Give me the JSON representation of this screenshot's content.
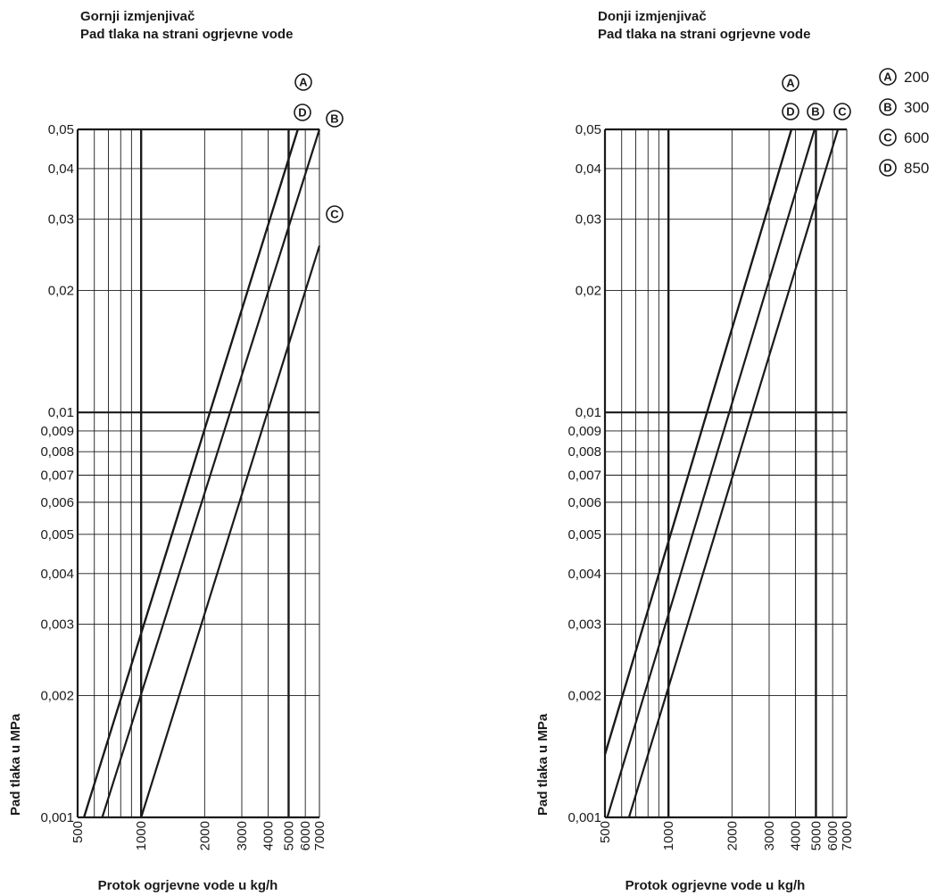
{
  "chart_data": [
    {
      "type": "line",
      "title": "Gornji izmjenjivač",
      "subtitle": "Pad tlaka na strani ogrjevne vode",
      "xlabel": "Protok ogrjevne vode u kg/h",
      "ylabel": "Pad tlaka u MPa",
      "x_scale": "log",
      "y_scale": "log",
      "xlim": [
        500,
        7000
      ],
      "ylim": [
        0.001,
        0.05
      ],
      "x_ticks": [
        "500",
        "1000",
        "2000",
        "3000",
        "4000",
        "5000",
        "6000",
        "7000"
      ],
      "y_ticks": [
        "0,001",
        "0,002",
        "0,003",
        "0,004",
        "0,005",
        "0,006",
        "0,007",
        "0,008",
        "0,009",
        "0,01",
        "0,02",
        "0,03",
        "0,04",
        "0,05"
      ],
      "series": [
        {
          "name": "A",
          "x": [
            536,
            5528
          ],
          "y": [
            0.001,
            0.05
          ]
        },
        {
          "name": "D",
          "x": [
            536,
            5528
          ],
          "y": [
            0.001,
            0.05
          ]
        },
        {
          "name": "B",
          "x": [
            654,
            7000
          ],
          "y": [
            0.001,
            0.05
          ]
        },
        {
          "name": "C",
          "x": [
            1000,
            7000
          ],
          "y": [
            0.001,
            0.0258
          ]
        }
      ]
    },
    {
      "type": "line",
      "title": "Donji izmjenjivač",
      "subtitle": "Pad tlaka na strani ogrjevne vode",
      "xlabel": "Protok ogrjevne vode u kg/h",
      "ylabel": "Pad tlaka u MPa",
      "x_scale": "log",
      "y_scale": "log",
      "xlim": [
        500,
        7000
      ],
      "ylim": [
        0.001,
        0.05
      ],
      "x_ticks": [
        "500",
        "1000",
        "2000",
        "3000",
        "4000",
        "5000",
        "6000",
        "7000"
      ],
      "y_ticks": [
        "0,001",
        "0,002",
        "0,003",
        "0,004",
        "0,005",
        "0,006",
        "0,007",
        "0,008",
        "0,009",
        "0,01",
        "0,02",
        "0,03",
        "0,04",
        "0,05"
      ],
      "series": [
        {
          "name": "A",
          "x": [
            500,
            3828
          ],
          "y": [
            0.00143,
            0.05
          ]
        },
        {
          "name": "D",
          "x": [
            500,
            3828
          ],
          "y": [
            0.00143,
            0.05
          ]
        },
        {
          "name": "B",
          "x": [
            513,
            4925
          ],
          "y": [
            0.001,
            0.05
          ]
        },
        {
          "name": "C",
          "x": [
            650,
            6358
          ],
          "y": [
            0.001,
            0.05
          ]
        }
      ]
    }
  ],
  "legend": [
    {
      "marker": "A",
      "value": "200"
    },
    {
      "marker": "B",
      "value": "300"
    },
    {
      "marker": "C",
      "value": "600"
    },
    {
      "marker": "D",
      "value": "850"
    }
  ]
}
